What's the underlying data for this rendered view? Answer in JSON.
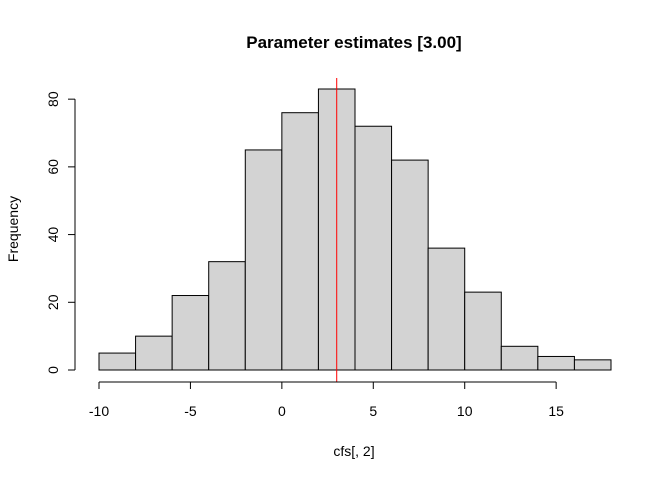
{
  "chart_data": {
    "type": "bar",
    "title": "Parameter estimates [3.00]",
    "xlabel": "cfs[, 2]",
    "ylabel": "Frequency",
    "bins": [
      {
        "start": -10,
        "end": -8,
        "count": 5
      },
      {
        "start": -8,
        "end": -6,
        "count": 10
      },
      {
        "start": -6,
        "end": -4,
        "count": 22
      },
      {
        "start": -4,
        "end": -2,
        "count": 32
      },
      {
        "start": -2,
        "end": 0,
        "count": 65
      },
      {
        "start": 0,
        "end": 2,
        "count": 76
      },
      {
        "start": 2,
        "end": 4,
        "count": 83
      },
      {
        "start": 4,
        "end": 6,
        "count": 72
      },
      {
        "start": 6,
        "end": 8,
        "count": 62
      },
      {
        "start": 8,
        "end": 10,
        "count": 36
      },
      {
        "start": 10,
        "end": 12,
        "count": 23
      },
      {
        "start": 12,
        "end": 14,
        "count": 7
      },
      {
        "start": 14,
        "end": 16,
        "count": 4
      },
      {
        "start": 16,
        "end": 18,
        "count": 3
      }
    ],
    "x_ticks": [
      -10,
      -5,
      0,
      5,
      10,
      15
    ],
    "y_ticks": [
      0,
      20,
      40,
      60,
      80
    ],
    "xlim": [
      -10,
      18
    ],
    "ylim": [
      0,
      83
    ],
    "reference_line": {
      "x": 3.0,
      "color": "#ff0000"
    },
    "bar_color": "#d3d3d3",
    "grid": false
  }
}
